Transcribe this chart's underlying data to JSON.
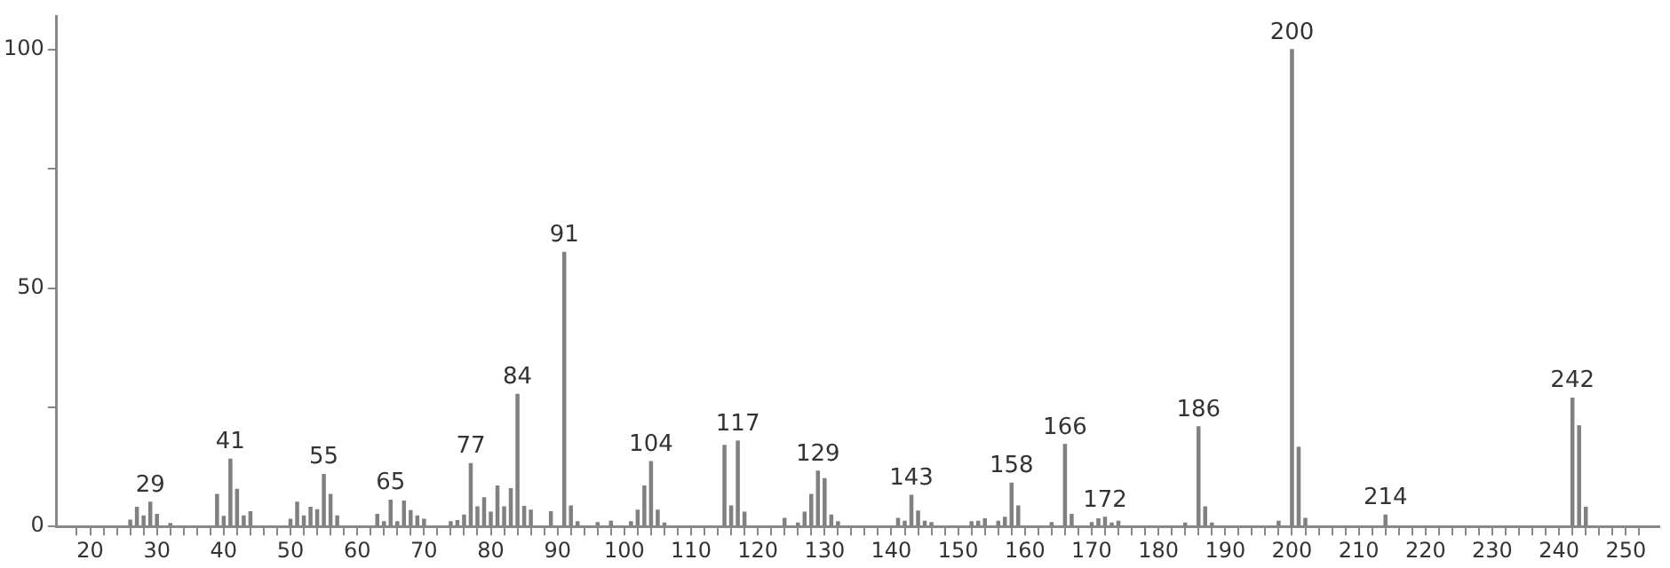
{
  "chart_data": {
    "type": "bar",
    "x": [
      26,
      27,
      28,
      29,
      30,
      32,
      39,
      40,
      41,
      42,
      43,
      44,
      50,
      51,
      52,
      53,
      54,
      55,
      56,
      57,
      63,
      64,
      65,
      66,
      67,
      68,
      69,
      70,
      74,
      75,
      76,
      77,
      78,
      79,
      80,
      81,
      82,
      83,
      84,
      85,
      86,
      89,
      91,
      92,
      93,
      96,
      98,
      101,
      102,
      103,
      104,
      105,
      106,
      115,
      116,
      117,
      118,
      124,
      126,
      127,
      128,
      129,
      130,
      131,
      132,
      141,
      142,
      143,
      144,
      145,
      146,
      152,
      153,
      154,
      156,
      157,
      158,
      159,
      164,
      166,
      167,
      170,
      171,
      172,
      173,
      174,
      184,
      186,
      187,
      188,
      198,
      200,
      201,
      202,
      214,
      242,
      243,
      244
    ],
    "values": [
      1.3,
      4.0,
      2.2,
      5.1,
      2.5,
      0.6,
      6.7,
      2.1,
      14.1,
      7.8,
      2.2,
      3.1,
      1.5,
      5.1,
      2.2,
      4.0,
      3.5,
      10.9,
      6.7,
      2.2,
      2.5,
      1.0,
      5.5,
      1.0,
      5.3,
      3.3,
      2.2,
      1.5,
      1.0,
      1.2,
      2.4,
      13.2,
      4.1,
      6.0,
      3.0,
      8.5,
      4.1,
      7.9,
      27.7,
      4.2,
      3.4,
      3.1,
      57.5,
      4.3,
      1.0,
      0.8,
      1.1,
      1.0,
      3.4,
      8.5,
      13.6,
      3.4,
      0.7,
      17.0,
      4.3,
      17.9,
      3.0,
      1.7,
      0.7,
      3.0,
      6.7,
      11.6,
      10.0,
      2.4,
      1.0,
      1.7,
      1.1,
      6.5,
      3.2,
      1.1,
      0.8,
      1.0,
      1.1,
      1.6,
      1.1,
      1.9,
      9.1,
      4.3,
      0.8,
      17.2,
      2.5,
      0.8,
      1.6,
      1.9,
      0.7,
      1.1,
      0.7,
      20.9,
      4.1,
      0.7,
      1.1,
      100,
      16.6,
      1.7,
      2.4,
      26.9,
      21.1,
      4.0
    ],
    "color": "#808080",
    "xlim": [
      16,
      254
    ],
    "xticks": [
      {
        "value": 18,
        "label": null
      },
      20,
      {
        "value": 22,
        "label": null
      },
      {
        "value": 24,
        "label": null
      },
      {
        "value": 26,
        "label": null
      },
      {
        "value": 28,
        "label": null
      },
      30,
      {
        "value": 32,
        "label": null
      },
      {
        "value": 34,
        "label": null
      },
      {
        "value": 36,
        "label": null
      },
      {
        "value": 38,
        "label": null
      },
      40,
      {
        "value": 42,
        "label": null
      },
      {
        "value": 44,
        "label": null
      },
      {
        "value": 46,
        "label": null
      },
      {
        "value": 48,
        "label": null
      },
      50,
      {
        "value": 52,
        "label": null
      },
      {
        "value": 54,
        "label": null
      },
      {
        "value": 56,
        "label": null
      },
      {
        "value": 58,
        "label": null
      },
      60,
      {
        "value": 62,
        "label": null
      },
      {
        "value": 64,
        "label": null
      },
      {
        "value": 66,
        "label": null
      },
      {
        "value": 68,
        "label": null
      },
      70,
      {
        "value": 72,
        "label": null
      },
      {
        "value": 74,
        "label": null
      },
      {
        "value": 76,
        "label": null
      },
      {
        "value": 78,
        "label": null
      },
      80,
      {
        "value": 82,
        "label": null
      },
      {
        "value": 84,
        "label": null
      },
      {
        "value": 86,
        "label": null
      },
      {
        "value": 88,
        "label": null
      },
      90,
      {
        "value": 92,
        "label": null
      },
      {
        "value": 94,
        "label": null
      },
      {
        "value": 96,
        "label": null
      },
      {
        "value": 98,
        "label": null
      },
      100,
      {
        "value": 102,
        "label": null
      },
      {
        "value": 104,
        "label": null
      },
      {
        "value": 106,
        "label": null
      },
      {
        "value": 108,
        "label": null
      },
      110,
      {
        "value": 112,
        "label": null
      },
      {
        "value": 114,
        "label": null
      },
      {
        "value": 116,
        "label": null
      },
      {
        "value": 118,
        "label": null
      },
      120,
      {
        "value": 122,
        "label": null
      },
      {
        "value": 124,
        "label": null
      },
      {
        "value": 126,
        "label": null
      },
      {
        "value": 128,
        "label": null
      },
      130,
      {
        "value": 132,
        "label": null
      },
      {
        "value": 134,
        "label": null
      },
      {
        "value": 136,
        "label": null
      },
      {
        "value": 138,
        "label": null
      },
      140,
      {
        "value": 142,
        "label": null
      },
      {
        "value": 144,
        "label": null
      },
      {
        "value": 146,
        "label": null
      },
      {
        "value": 148,
        "label": null
      },
      150,
      {
        "value": 152,
        "label": null
      },
      {
        "value": 154,
        "label": null
      },
      {
        "value": 156,
        "label": null
      },
      {
        "value": 158,
        "label": null
      },
      160,
      {
        "value": 162,
        "label": null
      },
      {
        "value": 164,
        "label": null
      },
      {
        "value": 166,
        "label": null
      },
      {
        "value": 168,
        "label": null
      },
      170,
      {
        "value": 172,
        "label": null
      },
      {
        "value": 174,
        "label": null
      },
      {
        "value": 176,
        "label": null
      },
      {
        "value": 178,
        "label": null
      },
      180,
      {
        "value": 182,
        "label": null
      },
      {
        "value": 184,
        "label": null
      },
      {
        "value": 186,
        "label": null
      },
      {
        "value": 188,
        "label": null
      },
      190,
      {
        "value": 192,
        "label": null
      },
      {
        "value": 194,
        "label": null
      },
      {
        "value": 196,
        "label": null
      },
      {
        "value": 198,
        "label": null
      },
      200,
      {
        "value": 202,
        "label": null
      },
      {
        "value": 204,
        "label": null
      },
      {
        "value": 206,
        "label": null
      },
      {
        "value": 208,
        "label": null
      },
      210,
      {
        "value": 212,
        "label": null
      },
      {
        "value": 214,
        "label": null
      },
      {
        "value": 216,
        "label": null
      },
      {
        "value": 218,
        "label": null
      },
      220,
      {
        "value": 222,
        "label": null
      },
      {
        "value": 224,
        "label": null
      },
      {
        "value": 226,
        "label": null
      },
      {
        "value": 228,
        "label": null
      },
      230,
      {
        "value": 232,
        "label": null
      },
      {
        "value": 234,
        "label": null
      },
      {
        "value": 236,
        "label": null
      },
      {
        "value": 238,
        "label": null
      },
      240,
      {
        "value": 242,
        "label": null
      },
      {
        "value": 244,
        "label": null
      },
      {
        "value": 246,
        "label": null
      },
      {
        "value": 248,
        "label": null
      },
      250,
      {
        "value": 252,
        "label": null
      }
    ],
    "ylim": [
      0,
      107
    ],
    "yticks": [
      0,
      {
        "value": 25,
        "label": null
      },
      50,
      {
        "value": 75,
        "label": null
      },
      100
    ],
    "annotations": [
      {
        "text": "29",
        "x": 29,
        "y": 5.1
      },
      {
        "text": "41",
        "x": 41,
        "y": 14.1
      },
      {
        "text": "55",
        "x": 55,
        "y": 10.9
      },
      {
        "text": "65",
        "x": 65,
        "y": 5.5
      },
      {
        "text": "77",
        "x": 77,
        "y": 13.2
      },
      {
        "text": "84",
        "x": 84,
        "y": 27.7
      },
      {
        "text": "91",
        "x": 91,
        "y": 57.5
      },
      {
        "text": "104",
        "x": 104,
        "y": 13.6
      },
      {
        "text": "117",
        "x": 117,
        "y": 17.9
      },
      {
        "text": "129",
        "x": 129,
        "y": 11.6
      },
      {
        "text": "143",
        "x": 143,
        "y": 6.5
      },
      {
        "text": "158",
        "x": 158,
        "y": 9.1
      },
      {
        "text": "166",
        "x": 166,
        "y": 17.2
      },
      {
        "text": "172",
        "x": 172,
        "y": 1.9
      },
      {
        "text": "186",
        "x": 186,
        "y": 20.9
      },
      {
        "text": "200",
        "x": 200,
        "y": 100
      },
      {
        "text": "214",
        "x": 214,
        "y": 2.4
      },
      {
        "text": "242",
        "x": 242,
        "y": 26.9
      }
    ],
    "grid": false,
    "legend": false
  }
}
